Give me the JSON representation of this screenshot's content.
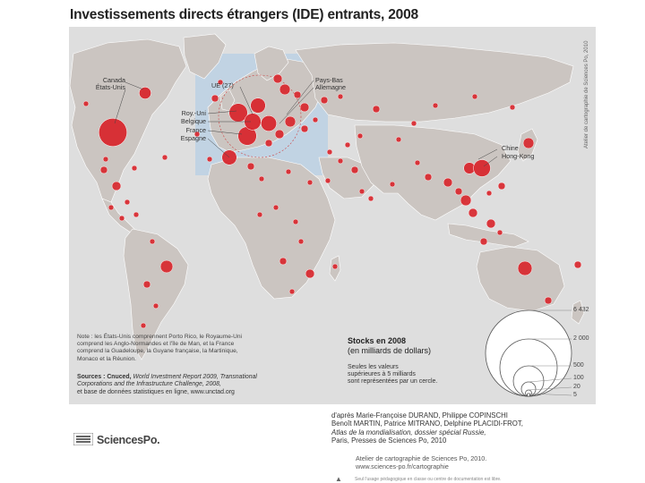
{
  "title": "Investissements directs étrangers (IDE) entrants, 2008",
  "credit_vertical": "Atelier de cartographie de Sciences Po, 2010",
  "labels": {
    "canada": "Canada",
    "usa": "États-Unis",
    "ue": "UE (27)",
    "paysbas": "Pays-Bas",
    "allemagne": "Allemagne",
    "royaumeuni": "Roy.-Uni",
    "belgique": "Belgique",
    "france": "France",
    "espagne": "Espagne",
    "chine": "Chine",
    "hongkong": "Hong-Kong"
  },
  "note": [
    "Note : les États-Unis comprennent Porto Rico, le Royaume-Uni",
    "comprend les Anglo-Normandes et l'île de Man, et la France",
    "comprend la Guadeloupe, la Guyane française, la Martinique,",
    "Monaco et la Réunion."
  ],
  "sources": {
    "prefix": "Sources : Cnuced, ",
    "report_italic_1": "World Investment Report 2009, Transnational",
    "report_italic_2": "Corporations and the Infrastructure Challenge, 2008,",
    "line3": "et base de données statistiques en ligne, www.unctad.org"
  },
  "legend": {
    "title": "Stocks en 2008",
    "subtitle": "(en milliards de dollars)",
    "note_line1": "Seules les valeurs",
    "note_line2": "supérieures à 5 milliards",
    "note_line3": "sont représentées par un cercle.",
    "values": [
      "6 432",
      "2 000",
      "500",
      "100",
      "20",
      "5"
    ]
  },
  "attribution": {
    "line1": "d'après Marie-Françoise DURAND, Philippe COPINSCHI",
    "line2": "Benoît MARTIN, Patrice MITRANO, Delphine PLACIDI-FROT,",
    "line3": "Atlas de la mondialisation, dossier spécial Russie,",
    "line4": "Paris, Presses de Sciences Po, 2010"
  },
  "atelier": {
    "line1": "Atelier de cartographie de Sciences Po, 2010.",
    "line2": "www.sciences-po.fr/cartographie"
  },
  "footnote": "Seul l'usage pédagogique en classe ou centre de documentation est libre.",
  "logo": "SciencesPo.",
  "colors": {
    "circle": "#d8232a",
    "land": "#cdc7c3",
    "sea": "#e2e2e2",
    "europe_box": "#b9cfe3"
  },
  "map_data": {
    "projection": "world-inset",
    "circles": [
      {
        "name": "États-Unis",
        "value": 2279
      },
      {
        "name": "UE (27)",
        "value": 6432
      },
      {
        "name": "Royaume-Uni",
        "value": 982
      },
      {
        "name": "France",
        "value": 991
      },
      {
        "name": "Allemagne",
        "value": 700
      },
      {
        "name": "Belgique",
        "value": 800
      },
      {
        "name": "Espagne",
        "value": 634
      },
      {
        "name": "Pays-Bas",
        "value": 644
      },
      {
        "name": "Canada",
        "value": 412
      },
      {
        "name": "Chine",
        "value": 378
      },
      {
        "name": "Hong-Kong",
        "value": 835
      }
    ]
  }
}
